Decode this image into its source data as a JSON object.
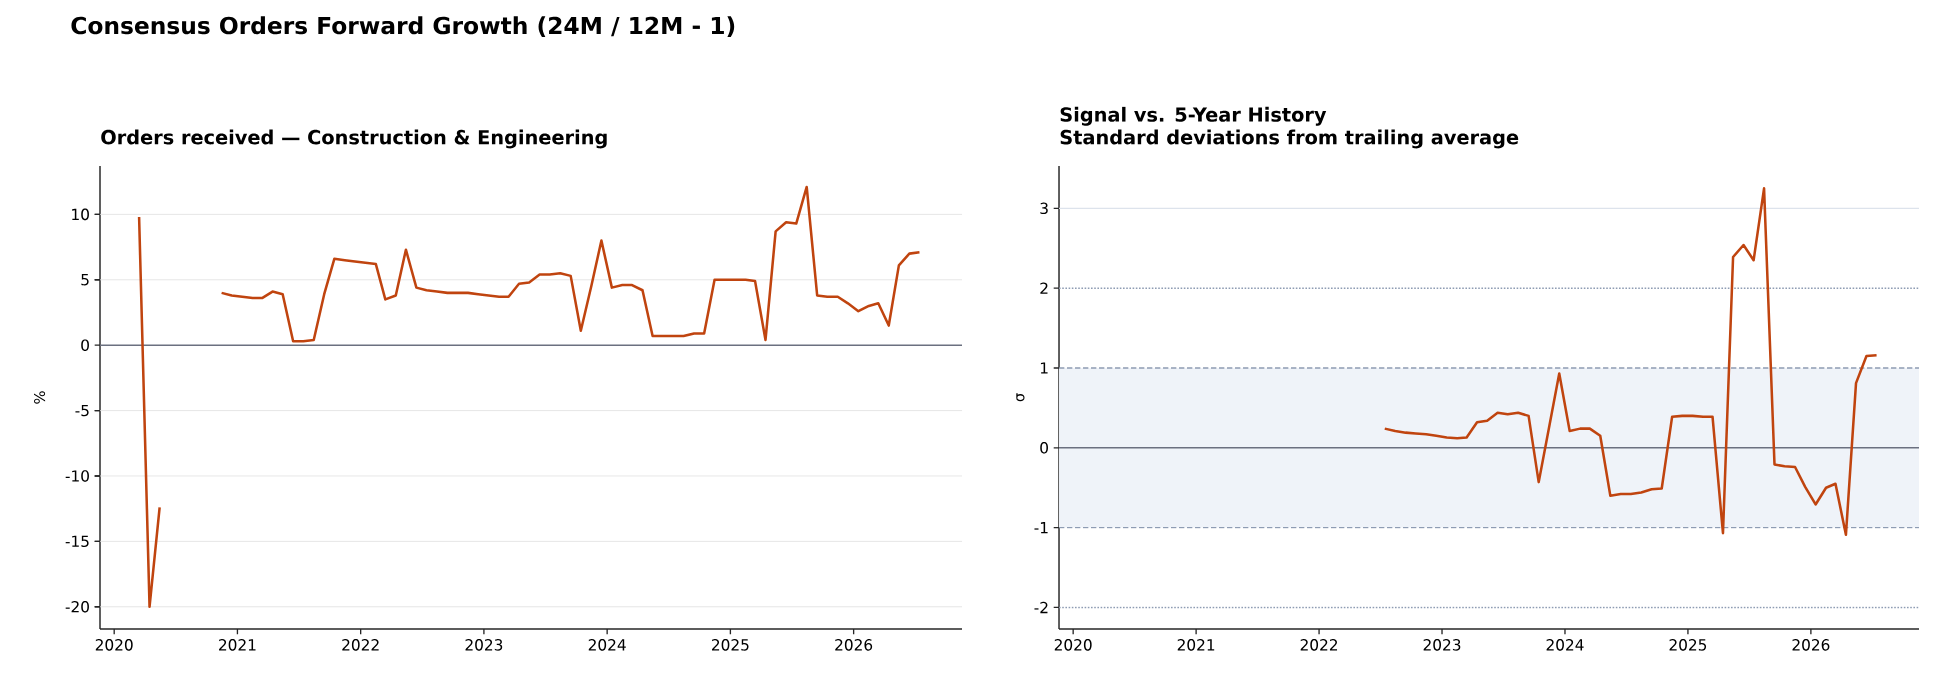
{
  "chart_data": [
    {
      "type": "line",
      "title": "Consensus Orders Forward Growth (24M / 12M - 1)",
      "subtitle": "Orders received — Construction & Engineering",
      "ylabel": "%",
      "color": "#c0440f",
      "x": [
        "2020-03-15",
        "2020-04-15",
        "2020-05-15",
        "2020-06-15",
        "2020-07-15",
        "2020-08-15",
        "2020-09-15",
        "2020-10-15",
        "2020-11-15",
        "2020-12-15",
        "2021-01-15",
        "2021-02-15",
        "2021-03-15",
        "2021-04-15",
        "2021-05-15",
        "2021-06-15",
        "2021-07-15",
        "2021-08-15",
        "2021-09-15",
        "2021-10-15",
        "2021-11-15",
        "2021-12-15",
        "2022-01-15",
        "2022-02-15",
        "2022-03-15",
        "2022-04-15",
        "2022-05-15",
        "2022-06-15",
        "2022-07-15",
        "2022-08-15",
        "2022-09-15",
        "2022-10-15",
        "2022-11-15",
        "2022-12-15",
        "2023-01-15",
        "2023-02-15",
        "2023-03-15",
        "2023-04-15",
        "2023-05-15",
        "2023-06-15",
        "2023-07-15",
        "2023-08-15",
        "2023-09-15",
        "2023-10-15",
        "2023-11-15",
        "2023-12-15",
        "2024-01-15",
        "2024-02-15",
        "2024-03-15",
        "2024-04-15",
        "2024-05-15",
        "2024-06-15",
        "2024-07-15",
        "2024-08-15",
        "2024-09-15",
        "2024-10-15",
        "2024-11-15",
        "2024-12-15",
        "2025-01-15",
        "2025-02-15",
        "2025-03-15",
        "2025-04-15",
        "2025-05-15",
        "2025-06-15",
        "2025-07-15",
        "2025-08-15",
        "2025-09-15",
        "2025-10-15",
        "2025-11-15",
        "2025-12-15",
        "2026-01-15",
        "2026-02-15",
        "2026-03-15",
        "2026-04-15",
        "2026-05-15",
        "2026-06-15",
        "2026-07-15"
      ],
      "values": [
        9.8,
        -20.0,
        -12.4,
        null,
        null,
        null,
        null,
        null,
        4.0,
        3.8,
        3.7,
        3.6,
        3.6,
        4.1,
        3.9,
        0.3,
        0.3,
        0.4,
        3.9,
        6.6,
        6.5,
        6.4,
        6.3,
        6.2,
        3.5,
        3.8,
        7.3,
        4.4,
        4.2,
        4.1,
        4.0,
        4.0,
        4.0,
        3.9,
        3.8,
        3.7,
        3.7,
        4.7,
        4.8,
        5.4,
        5.4,
        5.5,
        5.3,
        1.1,
        4.5,
        8.0,
        4.4,
        4.6,
        4.6,
        4.2,
        0.7,
        0.7,
        0.7,
        0.7,
        0.9,
        0.9,
        5.0,
        5.0,
        5.0,
        5.0,
        4.9,
        0.4,
        8.7,
        9.4,
        9.3,
        12.1,
        3.8,
        3.7,
        3.7,
        3.2,
        2.6,
        3.0,
        3.2,
        1.5,
        6.1,
        7.0,
        7.1
      ],
      "xlim": [
        "2019-11-20",
        "2026-11-18"
      ],
      "ylim": [
        -21.7,
        13.7
      ],
      "xticks": [
        "2020",
        "2021",
        "2022",
        "2023",
        "2024",
        "2025",
        "2026"
      ],
      "yticks": [
        -20,
        -15,
        -10,
        -5,
        0,
        5,
        10
      ],
      "grid": "y",
      "ref_lines": [
        {
          "axis": "y",
          "value": 0,
          "color": "#6b7080"
        }
      ]
    },
    {
      "type": "line",
      "title": "Signal vs. 5-Year History",
      "subtitle": "Standard deviations from trailing average",
      "ylabel": "σ",
      "color": "#c0440f",
      "x": [
        "2022-07-15",
        "2022-08-15",
        "2022-09-15",
        "2022-10-15",
        "2022-11-15",
        "2022-12-15",
        "2023-01-15",
        "2023-02-15",
        "2023-03-15",
        "2023-04-15",
        "2023-05-15",
        "2023-06-15",
        "2023-07-15",
        "2023-08-15",
        "2023-09-15",
        "2023-10-15",
        "2023-11-15",
        "2023-12-15",
        "2024-01-15",
        "2024-02-15",
        "2024-03-15",
        "2024-04-15",
        "2024-05-15",
        "2024-06-15",
        "2024-07-15",
        "2024-08-15",
        "2024-09-15",
        "2024-10-15",
        "2024-11-15",
        "2024-12-15",
        "2025-01-15",
        "2025-02-15",
        "2025-03-15",
        "2025-04-15",
        "2025-05-15",
        "2025-06-15",
        "2025-07-15",
        "2025-08-15",
        "2025-09-15",
        "2025-10-15",
        "2025-11-15",
        "2025-12-15",
        "2026-01-15",
        "2026-02-15",
        "2026-03-15",
        "2026-04-15",
        "2026-05-15",
        "2026-06-15",
        "2026-07-15"
      ],
      "values": [
        0.24,
        0.21,
        0.19,
        0.18,
        0.17,
        0.15,
        0.13,
        0.12,
        0.13,
        0.32,
        0.34,
        0.44,
        0.42,
        0.44,
        0.4,
        -0.43,
        0.26,
        0.93,
        0.21,
        0.24,
        0.24,
        0.15,
        -0.6,
        -0.58,
        -0.58,
        -0.56,
        -0.52,
        -0.51,
        0.39,
        0.4,
        0.4,
        0.39,
        0.39,
        -1.07,
        2.39,
        2.54,
        2.35,
        3.25,
        -0.21,
        -0.23,
        -0.24,
        -0.49,
        -0.71,
        -0.5,
        -0.45,
        -1.09,
        0.81,
        1.15,
        1.16
      ],
      "xlim": [
        "2019-11-20",
        "2026-11-18"
      ],
      "ylim": [
        -2.27,
        3.53
      ],
      "xticks": [
        "2020",
        "2021",
        "2022",
        "2023",
        "2024",
        "2025",
        "2026"
      ],
      "yticks": [
        -2,
        -1,
        0,
        1,
        2,
        3
      ],
      "bands": [
        {
          "axis": "y",
          "from": -1,
          "to": 1,
          "color": "#eff3f9"
        }
      ],
      "ref_lines": [
        {
          "axis": "y",
          "value": 0,
          "color": "#6b7080"
        },
        {
          "axis": "y",
          "value": 3,
          "color": "#dde3ec"
        },
        {
          "axis": "y",
          "value": 1,
          "color": "#8e9cb3",
          "line_style": "dashed"
        },
        {
          "axis": "y",
          "value": -1,
          "color": "#8e9cb3",
          "line_style": "dashed"
        },
        {
          "axis": "y",
          "value": 2,
          "color": "#8e9cb3",
          "line_style": "dotted"
        },
        {
          "axis": "y",
          "value": -2,
          "color": "#8e9cb3",
          "line_style": "dotted"
        }
      ]
    }
  ]
}
